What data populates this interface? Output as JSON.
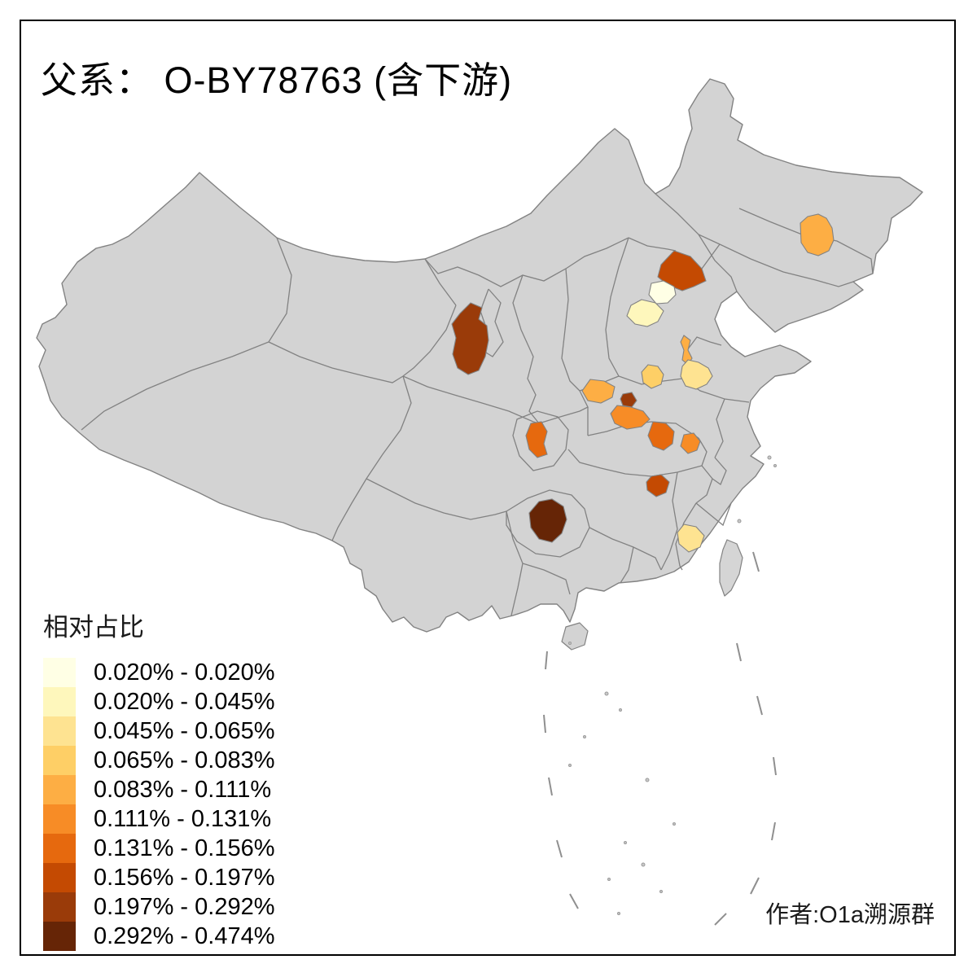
{
  "title": "父系： O-BY78763 (含下游)",
  "attribution": "作者:O1a溯源群",
  "legend": {
    "title": "相对占比",
    "entries": [
      {
        "label": "0.020% - 0.020%",
        "color": "#FFFFE5"
      },
      {
        "label": "0.020% - 0.045%",
        "color": "#FEF7BC"
      },
      {
        "label": "0.045% - 0.065%",
        "color": "#FEE391"
      },
      {
        "label": "0.065% - 0.083%",
        "color": "#FECF66"
      },
      {
        "label": "0.083% - 0.111%",
        "color": "#FDAE44"
      },
      {
        "label": "0.111% - 0.131%",
        "color": "#F78C26"
      },
      {
        "label": "0.131% - 0.156%",
        "color": "#E6690E"
      },
      {
        "label": "0.156% - 0.197%",
        "color": "#C44A02"
      },
      {
        "label": "0.197% - 0.292%",
        "color": "#9A3B09"
      },
      {
        "label": "0.292% - 0.474%",
        "color": "#662506"
      }
    ]
  },
  "map": {
    "land_color": "#D3D3D3",
    "island_color": "#D5D5D5",
    "border_color": "#828282",
    "sea_color": "#FFFFFF",
    "regions": {
      "heilongjiang-region": {
        "color": "#FDAE44",
        "range": "0.083% - 0.111%"
      },
      "hebei-north-region": {
        "color": "#C44A02",
        "range": "0.156% - 0.197%"
      },
      "beijing-region": {
        "color": "#FFFFE5",
        "range": "0.020% - 0.020%"
      },
      "hebei-central-region": {
        "color": "#FEF7BC",
        "range": "0.020% - 0.045%"
      },
      "gansu-region": {
        "color": "#9A3B09",
        "range": "0.197% - 0.292%"
      },
      "shandong-nw-strip": {
        "color": "#FDAE44",
        "range": "0.083% - 0.111%"
      },
      "shandong-west-region": {
        "color": "#FEE391",
        "range": "0.045% - 0.065%"
      },
      "henan-north-region": {
        "color": "#FECF66",
        "range": "0.065% - 0.083%"
      },
      "shaanxi-east-region": {
        "color": "#FDAE44",
        "range": "0.083% - 0.111%"
      },
      "shaanxi-small-region": {
        "color": "#9A3B09",
        "range": "0.197% - 0.292%"
      },
      "shaanxi-xian-region": {
        "color": "#F78C26",
        "range": "0.111% - 0.131%"
      },
      "hubei-nw-region": {
        "color": "#E6690E",
        "range": "0.131% - 0.156%"
      },
      "hubei-north-region": {
        "color": "#F78C26",
        "range": "0.111% - 0.131%"
      },
      "chongqing-region": {
        "color": "#E6690E",
        "range": "0.131% - 0.156%"
      },
      "hunan-north-region": {
        "color": "#C44A02",
        "range": "0.156% - 0.197%"
      },
      "guizhou-region": {
        "color": "#662506",
        "range": "0.292% - 0.474%"
      },
      "fujian-coast-region": {
        "color": "#FEE391",
        "range": "0.045% - 0.065%"
      }
    }
  }
}
